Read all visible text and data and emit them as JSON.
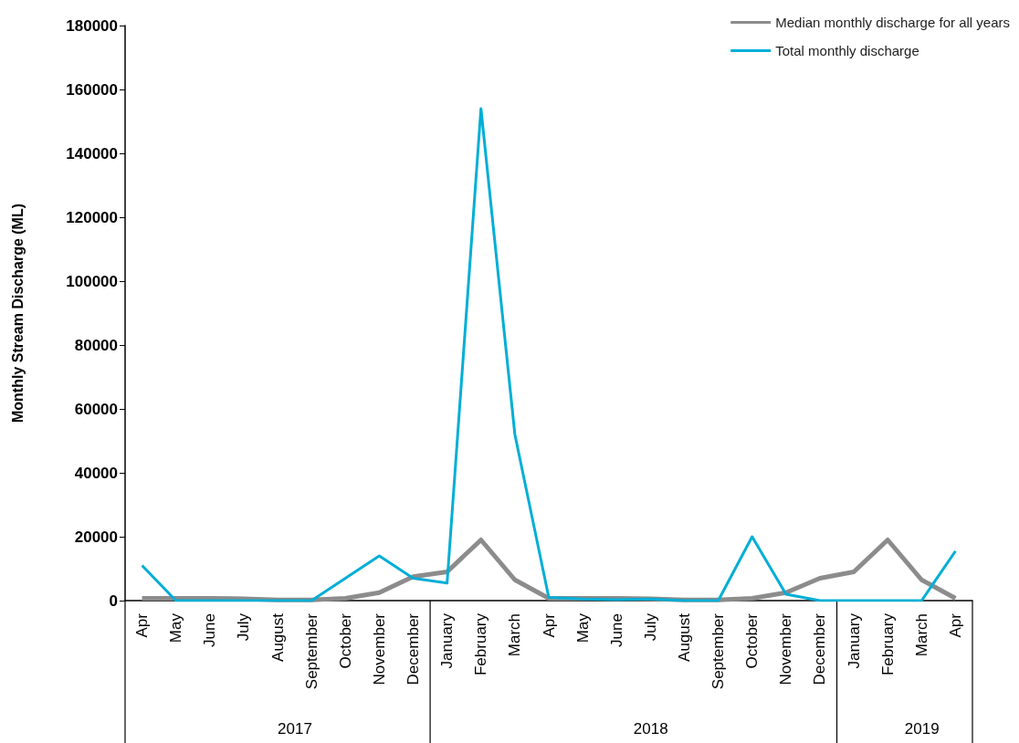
{
  "chart_data": {
    "type": "line",
    "ylabel": "Monthly Stream Discharge (ML)",
    "categories": [
      "Apr",
      "May",
      "June",
      "July",
      "August",
      "September",
      "October",
      "November",
      "December",
      "January",
      "February",
      "March",
      "Apr",
      "May",
      "June",
      "July",
      "August",
      "September",
      "October",
      "November",
      "December",
      "January",
      "February",
      "March",
      "Apr"
    ],
    "series": [
      {
        "name": "Median monthly discharge for all years",
        "color": "#8c8c8c",
        "values": [
          700,
          700,
          700,
          600,
          200,
          200,
          700,
          2500,
          7500,
          9000,
          19000,
          6500,
          700,
          700,
          700,
          600,
          200,
          200,
          700,
          2500,
          7000,
          9000,
          19000,
          6500,
          700
        ]
      },
      {
        "name": "Total monthly discharge",
        "color": "#00aed6",
        "values": [
          11000,
          0,
          0,
          0,
          0,
          0,
          7000,
          14000,
          7000,
          5500,
          154000,
          52000,
          1000,
          500,
          300,
          500,
          0,
          0,
          20000,
          2000,
          0,
          0,
          0,
          0,
          15500
        ]
      }
    ],
    "ylim": [
      0,
      180000
    ],
    "yticks": [
      0,
      20000,
      40000,
      60000,
      80000,
      100000,
      120000,
      140000,
      160000,
      180000
    ],
    "grid": false,
    "legend": "top right",
    "marker": "none",
    "line_style": "solid",
    "annotations": [
      "2017",
      "2018",
      "2019"
    ]
  }
}
